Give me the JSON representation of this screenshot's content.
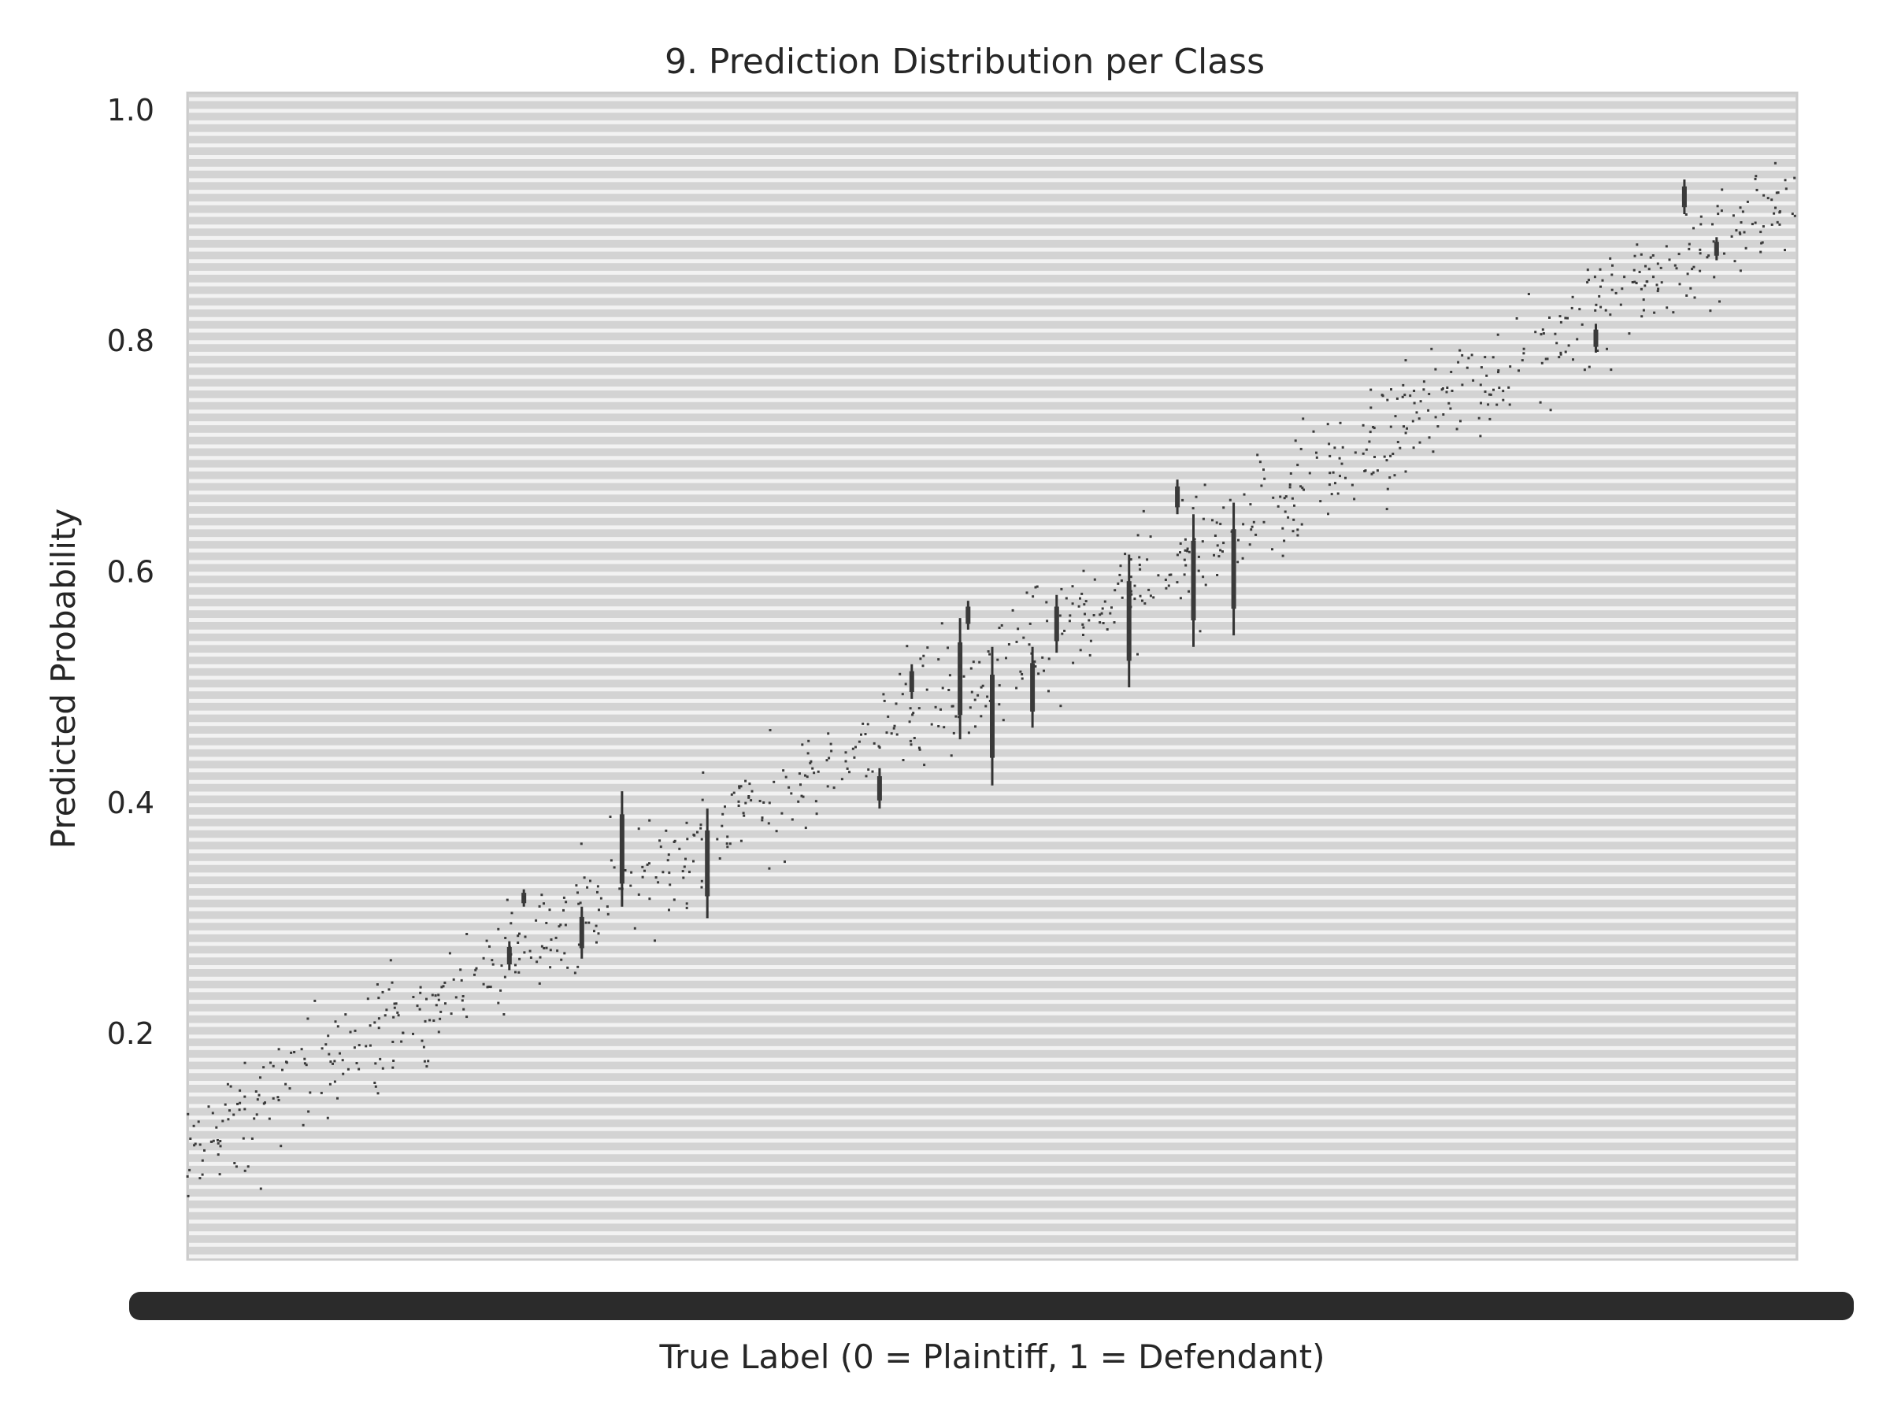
{
  "chart_data": {
    "type": "box",
    "title": "9. Prediction Distribution per Class",
    "xlabel": "True Label (0 = Plaintiff, 1 = Defendant)",
    "ylabel": "Predicted Probability",
    "ylim": [
      0.0,
      1.0
    ],
    "yticks": [
      0.2,
      0.4,
      0.6,
      0.8,
      1.0
    ],
    "ytick_labels": [
      "0.2",
      "0.4",
      "0.6",
      "0.8",
      "1.0"
    ],
    "grid": true,
    "x_trend": {
      "start": 0.1,
      "end": 0.93
    },
    "num_categories": 1000,
    "xtick_labels_note": "overlapping tick labels rendered as a dense dark band",
    "boxes": [
      {
        "position": 0.2,
        "low": 0.255,
        "high": 0.28
      },
      {
        "position": 0.209,
        "low": 0.31,
        "high": 0.325
      },
      {
        "position": 0.245,
        "low": 0.265,
        "high": 0.31
      },
      {
        "position": 0.27,
        "low": 0.31,
        "high": 0.41
      },
      {
        "position": 0.323,
        "low": 0.3,
        "high": 0.395
      },
      {
        "position": 0.43,
        "low": 0.395,
        "high": 0.43
      },
      {
        "position": 0.45,
        "low": 0.49,
        "high": 0.52
      },
      {
        "position": 0.48,
        "low": 0.455,
        "high": 0.56
      },
      {
        "position": 0.485,
        "low": 0.55,
        "high": 0.575
      },
      {
        "position": 0.5,
        "low": 0.415,
        "high": 0.535
      },
      {
        "position": 0.525,
        "low": 0.465,
        "high": 0.535
      },
      {
        "position": 0.54,
        "low": 0.53,
        "high": 0.58
      },
      {
        "position": 0.585,
        "low": 0.5,
        "high": 0.615
      },
      {
        "position": 0.615,
        "low": 0.65,
        "high": 0.68
      },
      {
        "position": 0.625,
        "low": 0.535,
        "high": 0.65
      },
      {
        "position": 0.65,
        "low": 0.545,
        "high": 0.66
      },
      {
        "position": 0.875,
        "low": 0.79,
        "high": 0.815
      },
      {
        "position": 0.93,
        "low": 0.91,
        "high": 0.94
      },
      {
        "position": 0.95,
        "low": 0.87,
        "high": 0.89
      }
    ]
  }
}
